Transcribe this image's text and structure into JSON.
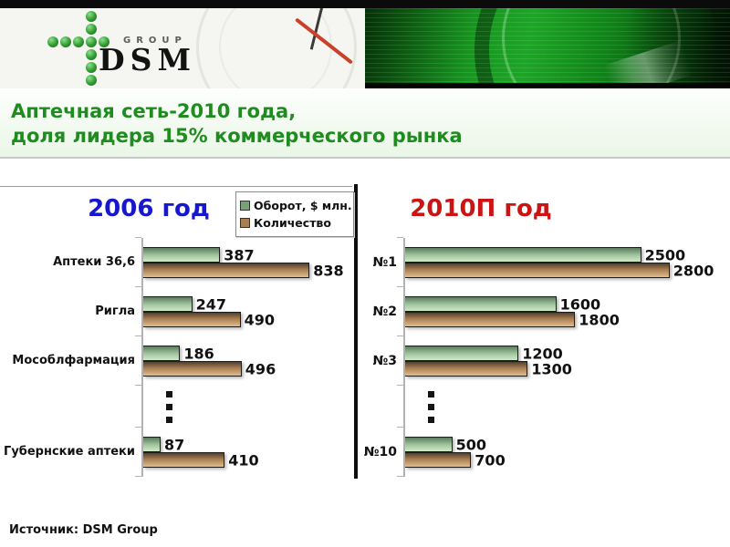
{
  "header": {
    "logo_group": "GROUP",
    "logo_dsm": "DSM"
  },
  "title": {
    "line1": "Аптечная сеть-2010 года,",
    "line2": "доля лидера 15% коммерческого рынка",
    "color": "#1e8c1e"
  },
  "legend": {
    "items": [
      {
        "label": "Оборот, $ млн.",
        "color": "#74a476"
      },
      {
        "label": "Количество",
        "color": "#a97e52"
      }
    ]
  },
  "chart_data": [
    {
      "type": "bar",
      "orientation": "horizontal",
      "title": "2006 год",
      "title_color": "#1717cc",
      "series": [
        "Оборот, $ млн.",
        "Количество"
      ],
      "axis_max": 920,
      "legend_visible": true,
      "rows": [
        {
          "label": "Аптеки 36,6",
          "values": [
            387,
            838
          ]
        },
        {
          "label": "Ригла",
          "values": [
            247,
            490
          ]
        },
        {
          "label": "Мособлфармация",
          "values": [
            186,
            496
          ]
        },
        {
          "ellipsis": true
        },
        {
          "label": "Губернские аптеки",
          "values": [
            87,
            410
          ]
        }
      ]
    },
    {
      "type": "bar",
      "orientation": "horizontal",
      "title": "2010П год",
      "title_color": "#cc1414",
      "series": [
        "Оборот, $ млн.",
        "Количество"
      ],
      "axis_max": 2900,
      "legend_visible": false,
      "rows": [
        {
          "label": "№1",
          "values": [
            2500,
            2800
          ]
        },
        {
          "label": "№2",
          "values": [
            1600,
            1800
          ]
        },
        {
          "label": "№3",
          "values": [
            1200,
            1300
          ]
        },
        {
          "ellipsis": true
        },
        {
          "label": "№10",
          "values": [
            500,
            700
          ]
        }
      ]
    }
  ],
  "colors": {
    "bar_turnover": "#74a476",
    "bar_count": "#a97e52",
    "axis": "#b3b3b3",
    "divider": "#111111"
  },
  "footer": {
    "source": "Источник: DSM Group"
  }
}
